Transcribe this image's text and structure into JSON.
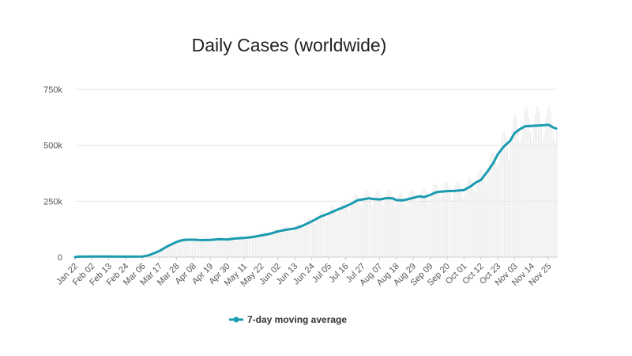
{
  "chart_data": {
    "type": "line",
    "title": "Daily Cases (worldwide)",
    "ylim": [
      0,
      750000
    ],
    "y_ticks": [
      "0",
      "250k",
      "500k",
      "750k"
    ],
    "y_tick_values": [
      0,
      250000,
      500000,
      750000
    ],
    "x_start": "Jan 22",
    "x_ticks": [
      "Jan 22",
      "Feb 02",
      "Feb 13",
      "Feb 24",
      "Mar 06",
      "Mar 17",
      "Mar 28",
      "Apr 08",
      "Apr 19",
      "Apr 30",
      "May 11",
      "May 22",
      "Jun 02",
      "Jun 13",
      "Jun 24",
      "Jul 05",
      "Jul 16",
      "Jul 27",
      "Aug 07",
      "Aug 18",
      "Aug 29",
      "Sep 09",
      "Sep 20",
      "Oct 01",
      "Oct 12",
      "Oct 23",
      "Nov 03",
      "Nov 14",
      "Nov 25"
    ],
    "grid": true,
    "legend_position": "bottom",
    "series": [
      {
        "name": "7-day moving average",
        "color": "#1a9bb0",
        "x": [
          "Jan 22",
          "Jan 24",
          "Feb 02",
          "Feb 13",
          "Feb 24",
          "Mar 06",
          "Mar 10",
          "Mar 17",
          "Mar 22",
          "Mar 28",
          "Apr 01",
          "Apr 04",
          "Apr 08",
          "Apr 13",
          "Apr 19",
          "Apr 25",
          "Apr 30",
          "May 05",
          "May 11",
          "May 16",
          "May 22",
          "May 27",
          "Jun 02",
          "Jun 07",
          "Jun 13",
          "Jun 18",
          "Jun 24",
          "Jun 30",
          "Jul 05",
          "Jul 11",
          "Jul 16",
          "Jul 20",
          "Jul 24",
          "Jul 27",
          "Jul 31",
          "Aug 03",
          "Aug 07",
          "Aug 12",
          "Aug 16",
          "Aug 18",
          "Aug 22",
          "Aug 25",
          "Aug 29",
          "Sep 02",
          "Sep 05",
          "Sep 09",
          "Sep 13",
          "Sep 16",
          "Sep 20",
          "Sep 25",
          "Oct 01",
          "Oct 05",
          "Oct 09",
          "Oct 12",
          "Oct 16",
          "Oct 20",
          "Oct 23",
          "Oct 27",
          "Oct 31",
          "Nov 03",
          "Nov 07",
          "Nov 10",
          "Nov 14",
          "Nov 18",
          "Nov 22",
          "Nov 25",
          "Nov 28",
          "Nov 30"
        ],
        "values": [
          0,
          2000,
          3000,
          3000,
          2000,
          3000,
          8000,
          28000,
          48000,
          68000,
          76000,
          78000,
          78000,
          76000,
          77000,
          80000,
          79000,
          83000,
          86000,
          89000,
          97000,
          103000,
          115000,
          122000,
          128000,
          140000,
          160000,
          182000,
          195000,
          213000,
          227000,
          240000,
          255000,
          258000,
          263000,
          260000,
          258000,
          264000,
          262000,
          255000,
          254000,
          258000,
          265000,
          272000,
          268000,
          278000,
          290000,
          293000,
          295000,
          296000,
          300000,
          315000,
          335000,
          345000,
          380000,
          420000,
          460000,
          495000,
          520000,
          555000,
          575000,
          585000,
          587000,
          588000,
          590000,
          592000,
          580000,
          575000
        ]
      }
    ]
  }
}
